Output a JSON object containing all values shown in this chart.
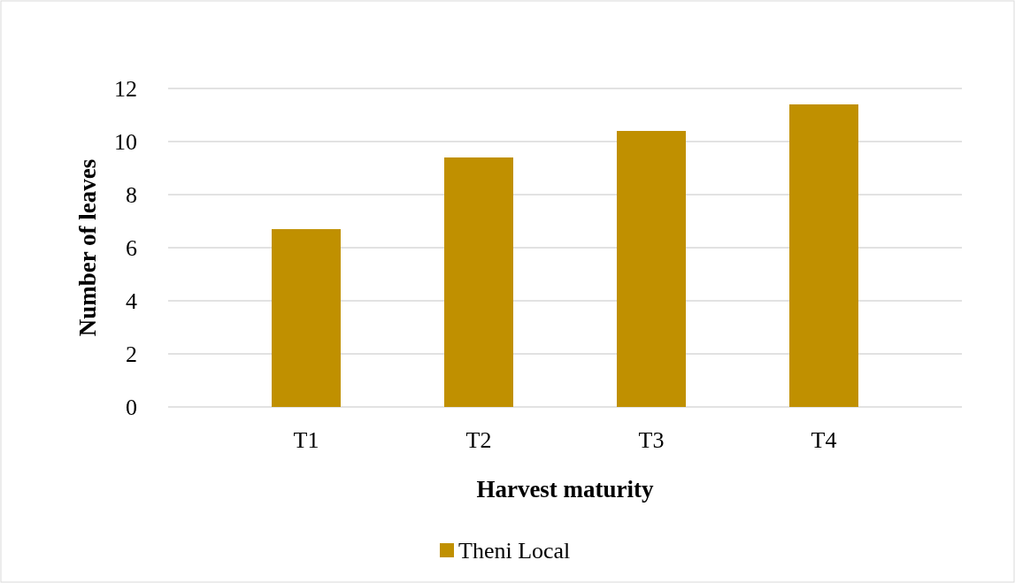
{
  "chart_data": {
    "type": "bar",
    "xlabel": "Harvest maturity",
    "ylabel": "Number of leaves",
    "categories": [
      "T1",
      "T2",
      "T3",
      "T4"
    ],
    "series": [
      {
        "name": "Theni Local",
        "color": "#c09000",
        "values": [
          6.7,
          9.4,
          10.4,
          11.4
        ]
      }
    ],
    "ylim": [
      0,
      12
    ],
    "yticks": [
      0,
      2,
      4,
      6,
      8,
      10,
      12
    ],
    "grid": "y",
    "legend": "bottom"
  }
}
